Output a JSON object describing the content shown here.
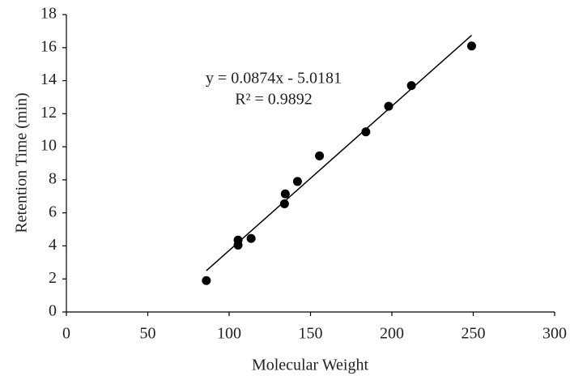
{
  "chart_data": {
    "type": "scatter",
    "x_label": "Molecular Weight",
    "y_label": "Retention Time (min)",
    "series": [
      {
        "color": "#000000",
        "x": [
          86,
          105.5,
          105.5,
          113.5,
          134,
          134.5,
          142,
          155.5,
          184,
          198,
          212,
          249
        ],
        "values": [
          1.9,
          4.05,
          4.35,
          4.45,
          6.55,
          7.15,
          7.9,
          9.45,
          10.9,
          12.45,
          13.7,
          16.1
        ]
      }
    ],
    "trendline": {
      "slope": 0.0874,
      "intercept": -5.0181,
      "color": "#000000",
      "equation": "y = 0.0874x - 5.0181",
      "r_squared": "R² = 0.9892"
    },
    "xlim": [
      0,
      300
    ],
    "xticks": [
      0,
      50,
      100,
      150,
      200,
      250,
      300
    ],
    "ylim": [
      0,
      18
    ],
    "yticks": [
      0,
      2,
      4,
      6,
      8,
      10,
      12,
      14,
      16,
      18
    ],
    "grid": false
  }
}
